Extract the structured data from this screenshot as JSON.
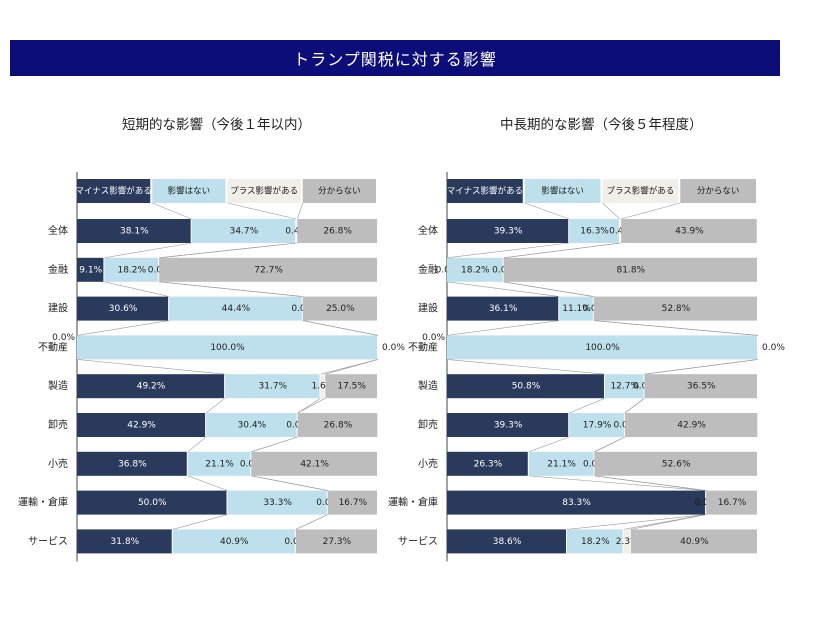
{
  "title": "トランプ関税に対する影響",
  "colors": {
    "banner": "#0d0d7a",
    "minus": "#2a3a5c",
    "none": "#bde0ec",
    "plus": "#f1efea",
    "unknown": "#bdbdbd"
  },
  "legend": [
    "マイナス影響がある",
    "影響はない",
    "プラス影響がある",
    "分からない"
  ],
  "chart_data": [
    {
      "type": "bar",
      "stacked": true,
      "orientation": "horizontal",
      "percent": true,
      "title": "短期的な影響（今後１年以内）",
      "categories": [
        "全体",
        "金融",
        "建設",
        "不動産",
        "製造",
        "卸売",
        "小売",
        "運輸・倉庫",
        "サービス"
      ],
      "series": [
        {
          "name": "マイナス影響がある",
          "values": [
            38.1,
            9.1,
            30.6,
            0.0,
            49.2,
            42.9,
            36.8,
            50.0,
            31.8
          ]
        },
        {
          "name": "影響はない",
          "values": [
            34.7,
            18.2,
            44.4,
            100.0,
            31.7,
            30.4,
            21.1,
            33.3,
            40.9
          ]
        },
        {
          "name": "プラス影響がある",
          "values": [
            0.4,
            0.0,
            0.0,
            0.0,
            1.6,
            0.0,
            0.0,
            0.0,
            0.0
          ]
        },
        {
          "name": "分からない",
          "values": [
            26.8,
            72.7,
            25.0,
            0.0,
            17.5,
            26.8,
            42.1,
            16.7,
            27.3
          ]
        }
      ]
    },
    {
      "type": "bar",
      "stacked": true,
      "orientation": "horizontal",
      "percent": true,
      "title": "中長期的な影響（今後５年程度）",
      "categories": [
        "全体",
        "金融",
        "建設",
        "不動産",
        "製造",
        "卸売",
        "小売",
        "運輸・倉庫",
        "サービス"
      ],
      "series": [
        {
          "name": "マイナス影響がある",
          "values": [
            39.3,
            0.0,
            36.1,
            0.0,
            50.8,
            39.3,
            26.3,
            83.3,
            38.6
          ]
        },
        {
          "name": "影響はない",
          "values": [
            16.3,
            18.2,
            11.1,
            100.0,
            12.7,
            17.9,
            21.1,
            0.0,
            18.2
          ]
        },
        {
          "name": "プラス影響がある",
          "values": [
            0.4,
            0.0,
            0.0,
            0.0,
            0.0,
            0.0,
            0.0,
            0.0,
            2.3
          ]
        },
        {
          "name": "分からない",
          "values": [
            43.9,
            81.8,
            52.8,
            0.0,
            36.5,
            42.9,
            52.6,
            16.7,
            40.9
          ]
        }
      ]
    }
  ]
}
